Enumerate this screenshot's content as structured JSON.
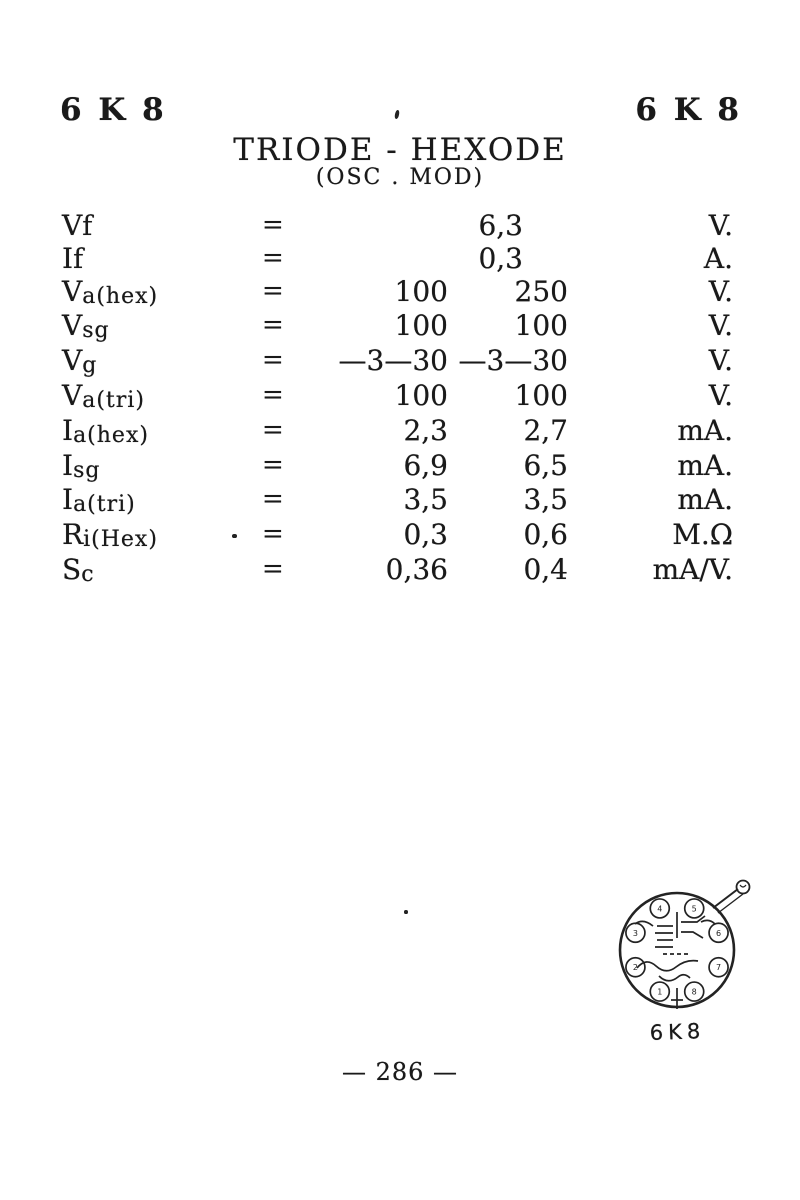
{
  "header": {
    "model_left": "6 K 8",
    "model_right": "6 K 8",
    "title": "TRIODE - HEXODE",
    "subtitle": "(OSC . MOD)"
  },
  "table": {
    "rows": [
      {
        "label_main": "V",
        "label_sub": "f",
        "sub_style": "inline",
        "eq": "=",
        "single": "6,3",
        "unit": "V."
      },
      {
        "label_main": "I",
        "label_sub": "f",
        "sub_style": "inline",
        "eq": "=",
        "single": "0,3",
        "unit": "A."
      },
      {
        "label_main": "V",
        "label_sub": "a(hex)",
        "sub_style": "sub",
        "eq": "=",
        "v1": "100",
        "v2": "250",
        "unit": "V."
      },
      {
        "label_main": "V",
        "label_sub": "sg",
        "sub_style": "sub",
        "eq": "=",
        "v1": "100",
        "v2": "100",
        "unit": "V."
      },
      {
        "label_main": "V",
        "label_sub": "g",
        "sub_style": "sub",
        "eq": "=",
        "v1": "—3—30",
        "v2": "—3—30",
        "unit": "V."
      },
      {
        "label_main": "V",
        "label_sub": "a(tri)",
        "sub_style": "sub",
        "eq": "=",
        "v1": "100",
        "v2": "100",
        "unit": "V."
      },
      {
        "label_main": "I",
        "label_sub": "a(hex)",
        "sub_style": "sub",
        "eq": "=",
        "v1": "2,3",
        "v2": "2,7",
        "unit": "mA."
      },
      {
        "label_main": "I",
        "label_sub": "sg",
        "sub_style": "sub",
        "eq": "=",
        "v1": "6,9",
        "v2": "6,5",
        "unit": "mA."
      },
      {
        "label_main": "I",
        "label_sub": "a(tri)",
        "sub_style": "sub",
        "eq": "=",
        "v1": "3,5",
        "v2": "3,5",
        "unit": "mA."
      },
      {
        "label_main": "R",
        "label_sub": "i(Hex)",
        "sub_style": "sub",
        "eq": "=",
        "v1": "0,3",
        "v2": "0,6",
        "unit": "M.Ω"
      },
      {
        "label_main": "S",
        "label_sub": "c",
        "sub_style": "sub",
        "eq": "=",
        "v1": "0,36",
        "v2": "0,4",
        "unit": "mA/V."
      }
    ]
  },
  "diagram": {
    "caption": "6K8",
    "pin_labels": [
      "1",
      "2",
      "3",
      "4",
      "5",
      "6",
      "7",
      "8"
    ]
  },
  "footer": {
    "page_number": "— 286 —"
  },
  "colors": {
    "ink": "#1a1a1a",
    "paper": "#ffffff"
  }
}
